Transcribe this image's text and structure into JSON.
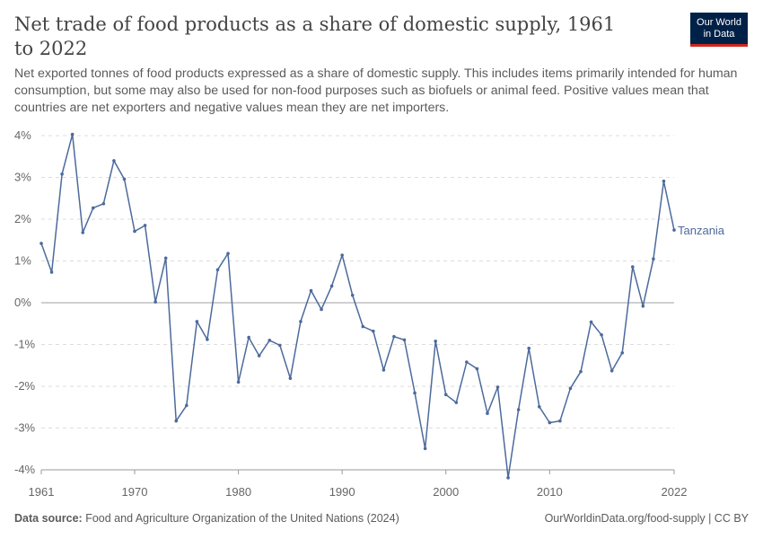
{
  "header": {
    "title": "Net trade of food products as a share of domestic supply, 1961 to 2022",
    "subtitle": "Net exported tonnes of food products expressed as a share of domestic supply. This includes items primarily intended for human consumption, but some may also be used for non-food purposes such as biofuels or animal feed. Positive values mean that countries are net exporters and negative values mean they are net importers.",
    "logo_line1": "Our World",
    "logo_line2": "in Data"
  },
  "footer": {
    "source_label": "Data source:",
    "source_text": "Food and Agriculture Organization of the United Nations (2024)",
    "url_text": "OurWorldinData.org/food-supply | CC BY"
  },
  "colors": {
    "series": "#4c6a9c",
    "grid": "#dddddd",
    "zero_line": "#a1a1a1",
    "tick_text": "#666666"
  },
  "chart_data": {
    "type": "line",
    "title": "Net trade of food products as a share of domestic supply, 1961 to 2022",
    "xlabel": "",
    "ylabel": "",
    "xlim": [
      1961,
      2022
    ],
    "ylim": [
      -4,
      4
    ],
    "grid": true,
    "x_ticks": [
      1961,
      1970,
      1980,
      1990,
      2000,
      2010,
      2022
    ],
    "y_ticks": [
      {
        "value": 4,
        "label": "4%"
      },
      {
        "value": 3,
        "label": "3%"
      },
      {
        "value": 2,
        "label": "2%"
      },
      {
        "value": 1,
        "label": "1%"
      },
      {
        "value": 0,
        "label": "0%"
      },
      {
        "value": -1,
        "label": "-1%"
      },
      {
        "value": -2,
        "label": "-2%"
      },
      {
        "value": -3,
        "label": "-3%"
      },
      {
        "value": -4,
        "label": "-4%"
      }
    ],
    "legend": "inline-end",
    "series": [
      {
        "name": "Tanzania",
        "x": [
          1961,
          1962,
          1963,
          1964,
          1965,
          1966,
          1967,
          1968,
          1969,
          1970,
          1971,
          1972,
          1973,
          1974,
          1975,
          1976,
          1977,
          1978,
          1979,
          1980,
          1981,
          1982,
          1983,
          1984,
          1985,
          1986,
          1987,
          1988,
          1989,
          1990,
          1991,
          1992,
          1993,
          1994,
          1995,
          1996,
          1997,
          1998,
          1999,
          2000,
          2001,
          2002,
          2003,
          2004,
          2005,
          2006,
          2007,
          2008,
          2009,
          2010,
          2011,
          2012,
          2013,
          2014,
          2015,
          2016,
          2017,
          2018,
          2019,
          2020,
          2021,
          2022
        ],
        "values": [
          1.42,
          0.73,
          3.08,
          4.03,
          1.68,
          2.27,
          2.37,
          3.4,
          2.96,
          1.71,
          1.85,
          0.02,
          1.07,
          -2.83,
          -2.46,
          -0.45,
          -0.88,
          0.79,
          1.18,
          -1.9,
          -0.83,
          -1.27,
          -0.9,
          -1.02,
          -1.81,
          -0.45,
          0.29,
          -0.16,
          0.4,
          1.14,
          0.18,
          -0.57,
          -0.68,
          -1.61,
          -0.81,
          -0.89,
          -2.16,
          -3.49,
          -0.92,
          -2.2,
          -2.39,
          -1.42,
          -1.58,
          -2.65,
          -2.02,
          -4.19,
          -2.56,
          -1.09,
          -2.49,
          -2.87,
          -2.83,
          -2.05,
          -1.65,
          -0.46,
          -0.77,
          -1.63,
          -1.2,
          0.86,
          -0.08,
          1.05,
          2.91,
          1.74
        ]
      }
    ]
  }
}
